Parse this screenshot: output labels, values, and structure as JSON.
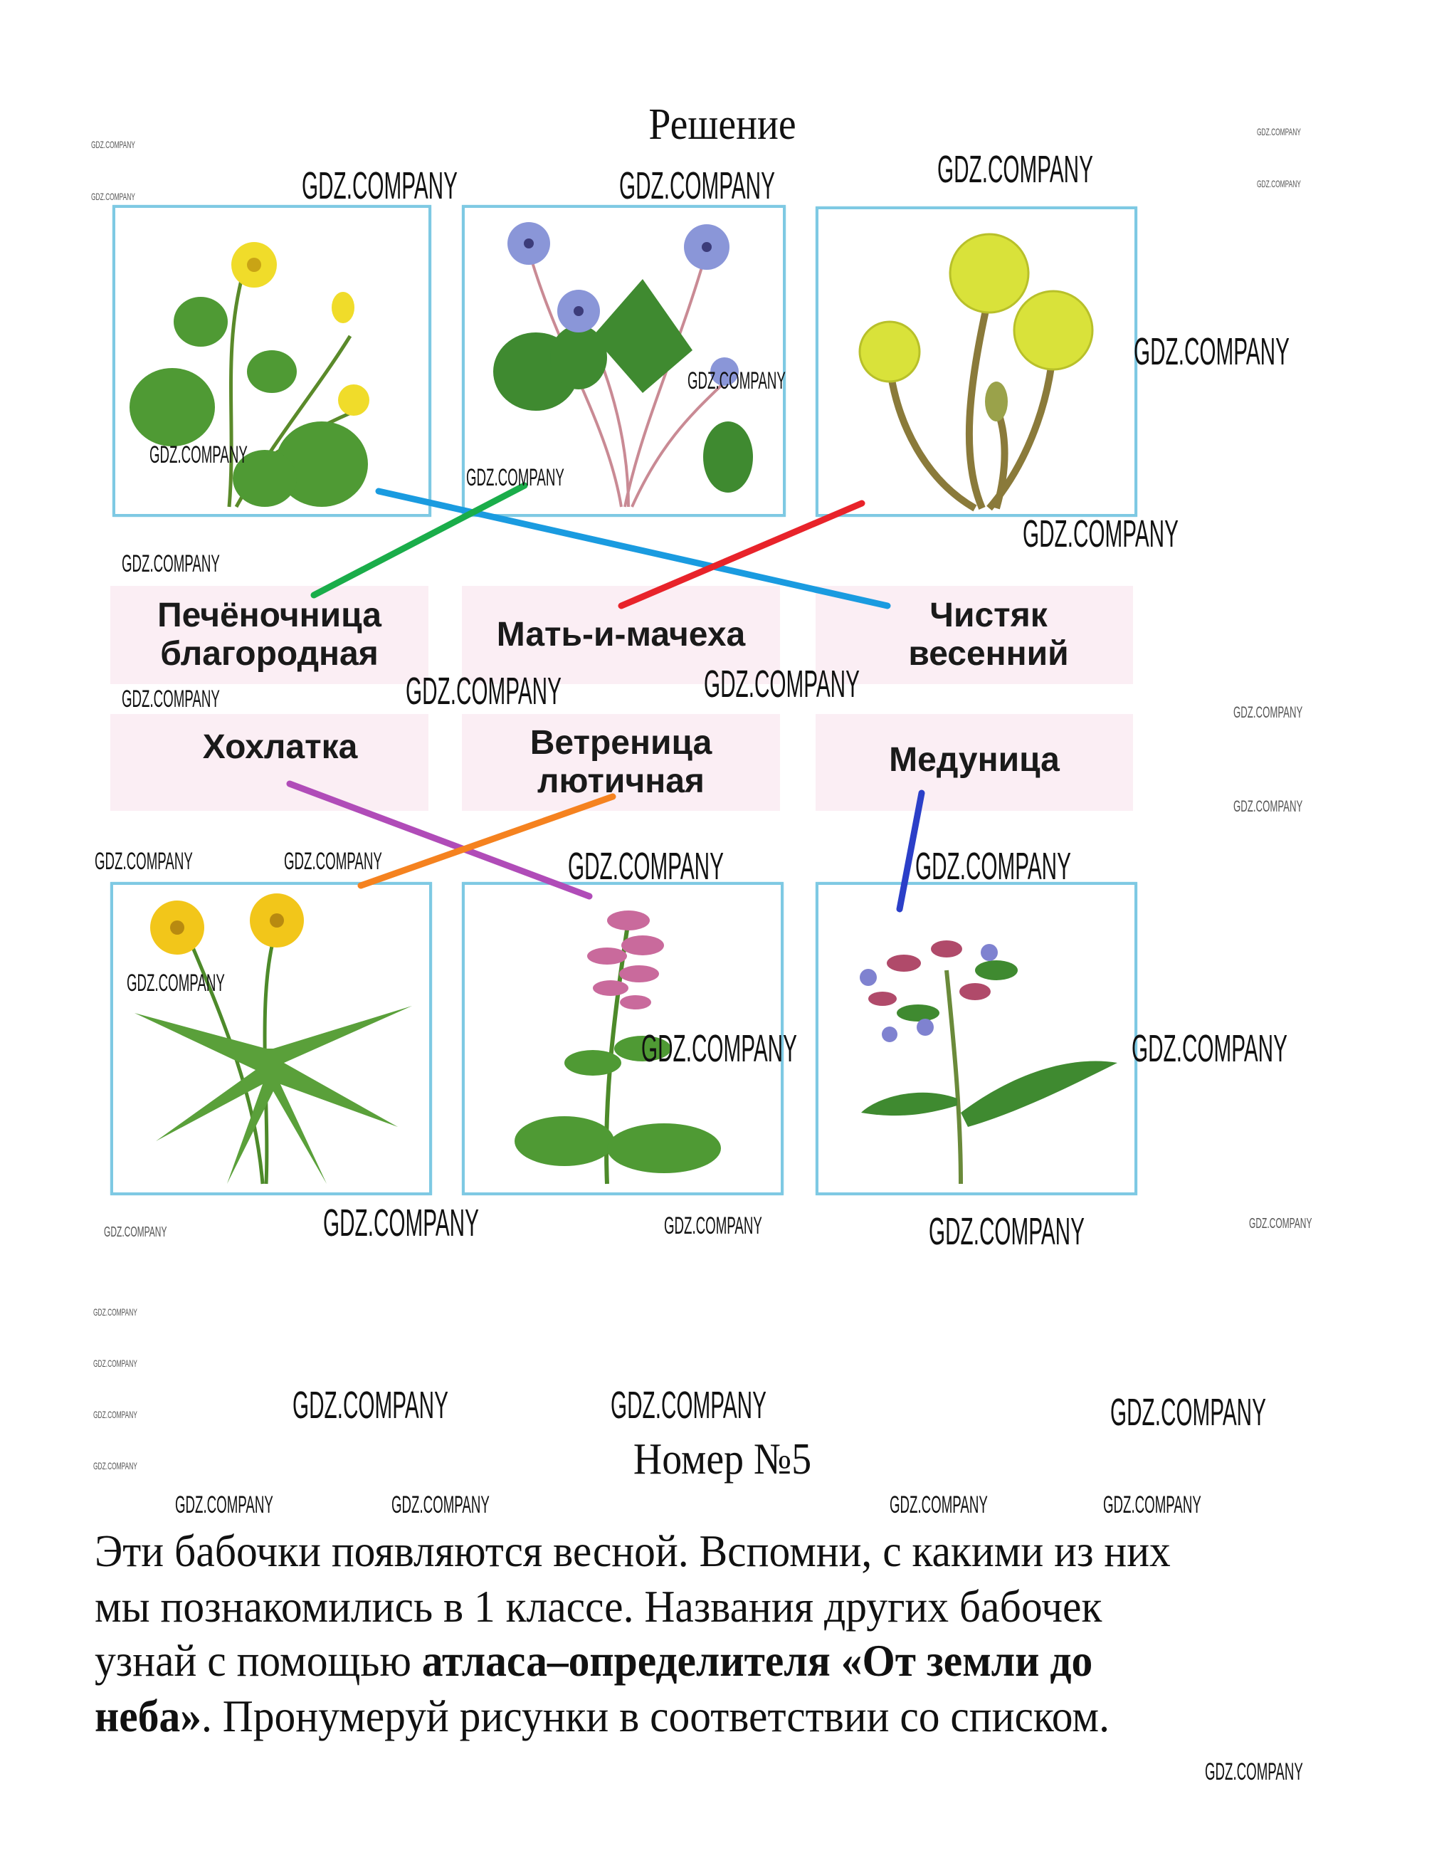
{
  "heading": "Решение",
  "watermark": "GDZ.COMPANY",
  "labels": {
    "row1": [
      {
        "line1": "Печёночница",
        "line2": "благородная"
      },
      {
        "line1": "Мать-и-мачеха",
        "line2": ""
      },
      {
        "line1": "Чистяк",
        "line2": "весенний"
      }
    ],
    "row2": [
      {
        "line1": "Хохлатка",
        "line2": ""
      },
      {
        "line1": "Ветреница",
        "line2": "лютичная"
      },
      {
        "line1": "Медуница",
        "line2": ""
      }
    ]
  },
  "matches": [
    {
      "from": "Чистяк весенний",
      "to_photo": "row1-1",
      "color": "#1a9be0"
    },
    {
      "from": "Печёночница благородная",
      "to_photo": "row1-2",
      "color": "#1aad4a"
    },
    {
      "from": "Мать-и-мачеха",
      "to_photo": "row1-3",
      "color": "#e8232a"
    },
    {
      "from": "Хохлатка",
      "to_photo": "row2-2",
      "color": "#b04cb8"
    },
    {
      "from": "Ветреница лютичная",
      "to_photo": "row2-1",
      "color": "#f5821f"
    },
    {
      "from": "Медуница",
      "to_photo": "row2-3",
      "color": "#2b3fc8"
    }
  ],
  "task": {
    "title": "Номер №5",
    "line1": "Эти бабочки появляются весной. Вспомни, с какими из них",
    "line2": "мы познакомились в 1 классе. Названия других бабочек",
    "line3_a": "узнай с помощью ",
    "line3_b": "атласа–определителя «От земли до",
    "line4_a": "неба»",
    "line4_b": ". Пронумеруй рисунки в соответствии со списком."
  },
  "colors": {
    "frame": "#7ec9e3",
    "label_bg": "#fbeef4"
  }
}
